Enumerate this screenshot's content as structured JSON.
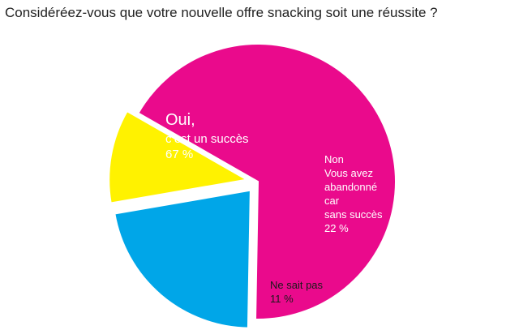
{
  "chart_data": {
    "type": "pie",
    "title": "Considéréez-vous que votre nouvelle offre snacking soit une réussite ?",
    "slices": [
      {
        "name": "Oui, c’est un succès",
        "value": 67,
        "color": "#ea0a8c",
        "label_lines": [
          "Oui,",
          "c’est un succès",
          "67 %"
        ]
      },
      {
        "name": "Non Vous avez abandonné car sans succès",
        "value": 22,
        "color": "#00a6e8",
        "label_lines": [
          "Non",
          "Vous avez",
          "abandonné",
          "car",
          "sans succès",
          "22 %"
        ]
      },
      {
        "name": "Ne sait pas",
        "value": 11,
        "color": "#fff200",
        "label_lines": [
          "Ne sait pas",
          "11 %"
        ]
      }
    ],
    "exploded": true,
    "legend": "none"
  }
}
